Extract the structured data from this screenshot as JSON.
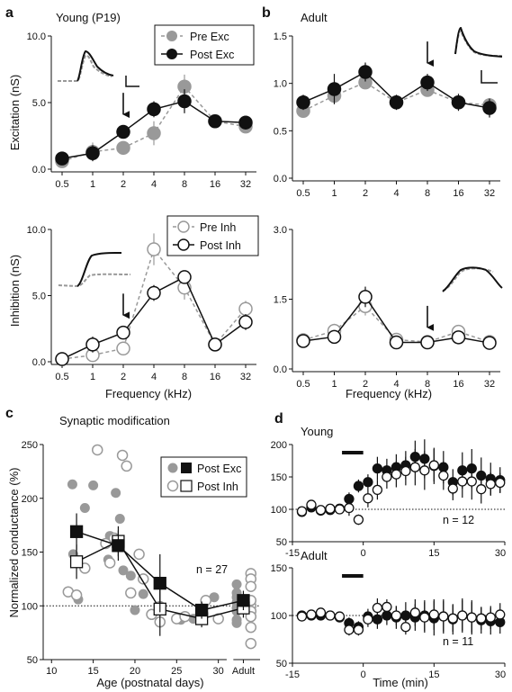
{
  "panel_letters": [
    "a",
    "b",
    "c",
    "d"
  ],
  "chart_data": [
    {
      "id": "a-exc",
      "type": "line",
      "title": "Young (P19)",
      "ylabel": "Excitation (nS)",
      "xlabel": "",
      "categories": [
        "0.5",
        "1",
        "2",
        "4",
        "8",
        "16",
        "32"
      ],
      "ylim": [
        0,
        10
      ],
      "yticks": [
        "0.0",
        "5.0",
        "10.0"
      ],
      "arrow_at": "2",
      "series": [
        {
          "name": "Pre Exc",
          "style": "gray-filled-dashed",
          "values": [
            0.6,
            1.3,
            1.6,
            2.7,
            6.2,
            3.6,
            3.2
          ],
          "err": [
            0.3,
            0.7,
            0.4,
            0.9,
            0.9,
            0.3,
            0.3
          ]
        },
        {
          "name": "Post Exc",
          "style": "black-filled-solid",
          "values": [
            0.8,
            1.2,
            2.8,
            4.5,
            5.1,
            3.6,
            3.5
          ],
          "err": [
            0.3,
            0.6,
            0.5,
            0.6,
            0.9,
            0.4,
            0.4
          ]
        }
      ]
    },
    {
      "id": "b-exc",
      "type": "line",
      "title": "Adult",
      "ylabel": "",
      "xlabel": "",
      "categories": [
        "0.5",
        "1",
        "2",
        "4",
        "8",
        "16",
        "32"
      ],
      "ylim": [
        0,
        1.5
      ],
      "yticks": [
        "0.0",
        "0.5",
        "1.0",
        "1.5"
      ],
      "arrow_at": "8",
      "series": [
        {
          "name": "Pre",
          "style": "gray-filled-dashed",
          "values": [
            0.71,
            0.87,
            1.01,
            0.8,
            0.93,
            0.8,
            0.77
          ],
          "err": [
            0.07,
            0.08,
            0.07,
            0.06,
            0.07,
            0.06,
            0.05
          ]
        },
        {
          "name": "Post",
          "style": "black-filled-solid",
          "values": [
            0.8,
            0.94,
            1.12,
            0.8,
            1.01,
            0.8,
            0.74
          ],
          "err": [
            0.08,
            0.16,
            0.1,
            0.08,
            0.09,
            0.09,
            0.1
          ]
        }
      ]
    },
    {
      "id": "a-inh",
      "type": "line",
      "title": "",
      "ylabel": "Inhibition (nS)",
      "xlabel": "Frequency (kHz)",
      "categories": [
        "0.5",
        "1",
        "2",
        "4",
        "8",
        "16",
        "32"
      ],
      "ylim": [
        0,
        10
      ],
      "yticks": [
        "0.0",
        "5.0",
        "10.0"
      ],
      "arrow_at": "2",
      "series": [
        {
          "name": "Pre Inh",
          "style": "gray-open-dashed",
          "values": [
            0.2,
            0.5,
            1.0,
            8.5,
            5.6,
            1.3,
            4.0
          ],
          "err": [
            0.2,
            0.4,
            0.5,
            1.2,
            0.9,
            0.3,
            0.6
          ]
        },
        {
          "name": "Post Inh",
          "style": "black-open-solid",
          "values": [
            0.2,
            1.3,
            2.2,
            5.2,
            6.4,
            1.3,
            3.0
          ],
          "err": [
            0.2,
            0.6,
            0.5,
            0.6,
            0.5,
            0.3,
            0.6
          ]
        }
      ]
    },
    {
      "id": "b-inh",
      "type": "line",
      "title": "",
      "ylabel": "",
      "xlabel": "Frequency (kHz)",
      "categories": [
        "0.5",
        "1",
        "2",
        "4",
        "8",
        "16",
        "32"
      ],
      "ylim": [
        0,
        3.0
      ],
      "yticks": [
        "0.0",
        "1.5",
        "3.0"
      ],
      "arrow_at": "8",
      "series": [
        {
          "name": "Pre",
          "style": "gray-open-dashed",
          "values": [
            0.62,
            0.82,
            1.35,
            0.63,
            0.58,
            0.8,
            0.58
          ],
          "err": [
            0.06,
            0.15,
            0.2,
            0.07,
            0.08,
            0.1,
            0.06
          ]
        },
        {
          "name": "Post",
          "style": "black-open-solid",
          "values": [
            0.6,
            0.69,
            1.55,
            0.57,
            0.57,
            0.68,
            0.56
          ],
          "err": [
            0.06,
            0.08,
            0.22,
            0.08,
            0.07,
            0.1,
            0.06
          ]
        }
      ]
    },
    {
      "id": "c",
      "type": "scatter",
      "title": "Synaptic modification",
      "xlabel": "Age (postnatal days)",
      "ylabel": "Normalized conductance (%)",
      "xlim": [
        9,
        35
      ],
      "xticks": [
        "10",
        "15",
        "20",
        "25",
        "30"
      ],
      "adult_label": "Adult",
      "ylim": [
        50,
        250
      ],
      "yticks": [
        "50",
        "100",
        "150",
        "200",
        "250"
      ],
      "reference_y": 100,
      "annotation": "n = 27",
      "legend": [
        "Post Exc",
        "Post Inh"
      ],
      "exc_points": [
        [
          12.5,
          213
        ],
        [
          12.6,
          148
        ],
        [
          13.2,
          106
        ],
        [
          14.0,
          191
        ],
        [
          15.0,
          212
        ],
        [
          16.8,
          143
        ],
        [
          17.0,
          165
        ],
        [
          17.7,
          205
        ],
        [
          18.2,
          181
        ],
        [
          18.6,
          133
        ],
        [
          19.5,
          128
        ],
        [
          20.0,
          96
        ],
        [
          21.0,
          111
        ],
        [
          23.0,
          100
        ],
        [
          25.5,
          87
        ],
        [
          27.0,
          88
        ],
        [
          29.5,
          108
        ]
      ],
      "inh_points": [
        [
          12.0,
          113
        ],
        [
          13.0,
          110
        ],
        [
          14.0,
          135
        ],
        [
          15.5,
          245
        ],
        [
          16.5,
          158
        ],
        [
          17.0,
          140
        ],
        [
          17.5,
          163
        ],
        [
          18.5,
          240
        ],
        [
          19.0,
          230
        ],
        [
          19.5,
          112
        ],
        [
          20.5,
          148
        ],
        [
          21.0,
          125
        ],
        [
          22.0,
          92
        ],
        [
          23.0,
          85
        ],
        [
          25.0,
          88
        ],
        [
          26.0,
          90
        ],
        [
          28.5,
          105
        ],
        [
          30.0,
          88
        ]
      ],
      "exc_mean": {
        "x": [
          13,
          18,
          23,
          28,
          33
        ],
        "y": [
          169,
          156,
          121,
          96,
          105
        ],
        "err": [
          17,
          14,
          27,
          8,
          9
        ]
      },
      "inh_mean": {
        "x": [
          13,
          18,
          23,
          28,
          33
        ],
        "y": [
          141,
          160,
          97,
          88,
          98
        ],
        "err": [
          16,
          14,
          25,
          8,
          9
        ]
      },
      "adult_exc": [
        108,
        98,
        95,
        87,
        84,
        103,
        112,
        120
      ],
      "adult_inh": [
        130,
        125,
        118,
        100,
        95,
        90,
        80,
        65,
        105
      ]
    },
    {
      "id": "d-young",
      "type": "scatter",
      "title": "Young",
      "xlabel": "",
      "ylabel": "",
      "xlim": [
        -15,
        30
      ],
      "xticks": [
        "-15",
        "0",
        "15",
        "30"
      ],
      "ylim": [
        50,
        200
      ],
      "yticks": [
        "50",
        "100",
        "150",
        "200"
      ],
      "reference_y": 100,
      "stim_bar": [
        -4.5,
        0
      ],
      "annotation": "n = 12",
      "series": [
        {
          "name": "Exc",
          "style": "black-filled",
          "x": [
            -13,
            -11,
            -9,
            -7,
            -5,
            -3,
            -1,
            1,
            3,
            5,
            7,
            9,
            11,
            13,
            15,
            17,
            19,
            21,
            23,
            25,
            27,
            29
          ],
          "y": [
            96,
            103,
            98,
            99,
            101,
            116,
            136,
            142,
            163,
            160,
            165,
            168,
            181,
            178,
            167,
            165,
            142,
            160,
            163,
            152,
            147,
            145
          ],
          "err": [
            6,
            6,
            6,
            5,
            6,
            10,
            10,
            12,
            18,
            18,
            20,
            22,
            25,
            30,
            28,
            25,
            20,
            28,
            30,
            28,
            25,
            20
          ]
        },
        {
          "name": "Inh",
          "style": "black-open",
          "x": [
            -13,
            -11,
            -9,
            -7,
            -5,
            -3,
            -1,
            1,
            3,
            5,
            7,
            9,
            11,
            13,
            15,
            17,
            19,
            21,
            23,
            25,
            27,
            29
          ],
          "y": [
            97,
            107,
            99,
            101,
            100,
            102,
            84,
            117,
            130,
            150,
            154,
            159,
            165,
            160,
            168,
            152,
            132,
            143,
            143,
            131,
            139,
            141
          ],
          "err": [
            5,
            6,
            5,
            5,
            6,
            12,
            8,
            14,
            15,
            18,
            20,
            22,
            28,
            30,
            25,
            22,
            18,
            25,
            28,
            22,
            18,
            15
          ]
        }
      ]
    },
    {
      "id": "d-adult",
      "type": "scatter",
      "title": "Adult",
      "xlabel": "Time (min)",
      "ylabel": "",
      "xlim": [
        -15,
        30
      ],
      "xticks": [
        "-15",
        "0",
        "15",
        "30"
      ],
      "ylim": [
        50,
        150
      ],
      "yticks": [
        "50",
        "100",
        "150"
      ],
      "reference_y": 100,
      "stim_bar": [
        -4.5,
        0
      ],
      "annotation": "n = 11",
      "series": [
        {
          "name": "Exc",
          "style": "black-filled",
          "x": [
            -13,
            -11,
            -9,
            -7,
            -5,
            -3,
            -1,
            1,
            3,
            5,
            7,
            9,
            11,
            13,
            15,
            17,
            19,
            21,
            23,
            25,
            27,
            29
          ],
          "y": [
            100,
            100,
            100,
            100,
            98,
            92,
            88,
            99,
            96,
            100,
            98,
            100,
            98,
            100,
            97,
            99,
            96,
            100,
            98,
            95,
            94,
            93
          ],
          "err": [
            3,
            3,
            3,
            3,
            4,
            6,
            6,
            8,
            10,
            10,
            12,
            14,
            14,
            16,
            18,
            18,
            16,
            18,
            18,
            14,
            14,
            12
          ]
        },
        {
          "name": "Inh",
          "style": "black-open",
          "x": [
            -13,
            -11,
            -9,
            -7,
            -5,
            -3,
            -1,
            1,
            3,
            5,
            7,
            9,
            11,
            13,
            15,
            17,
            19,
            21,
            23,
            25,
            27,
            29
          ],
          "y": [
            99,
            101,
            103,
            100,
            99,
            85,
            85,
            96,
            108,
            109,
            100,
            88,
            103,
            98,
            101,
            99,
            97,
            100,
            98,
            97,
            98,
            101
          ],
          "err": [
            3,
            3,
            3,
            3,
            4,
            6,
            6,
            8,
            10,
            8,
            10,
            8,
            14,
            16,
            16,
            16,
            14,
            16,
            16,
            12,
            12,
            12
          ]
        }
      ]
    }
  ]
}
